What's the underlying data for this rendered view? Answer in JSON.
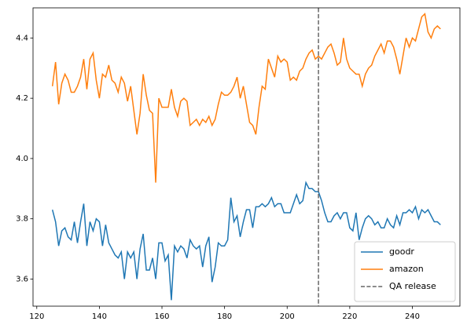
{
  "chart_data": {
    "type": "line",
    "x": [
      125,
      126,
      127,
      128,
      129,
      130,
      131,
      132,
      133,
      134,
      135,
      136,
      137,
      138,
      139,
      140,
      141,
      142,
      143,
      144,
      145,
      146,
      147,
      148,
      149,
      150,
      151,
      152,
      153,
      154,
      155,
      156,
      157,
      158,
      159,
      160,
      161,
      162,
      163,
      164,
      165,
      166,
      167,
      168,
      169,
      170,
      171,
      172,
      173,
      174,
      175,
      176,
      177,
      178,
      179,
      180,
      181,
      182,
      183,
      184,
      185,
      186,
      187,
      188,
      189,
      190,
      191,
      192,
      193,
      194,
      195,
      196,
      197,
      198,
      199,
      200,
      201,
      202,
      203,
      204,
      205,
      206,
      207,
      208,
      209,
      210,
      211,
      212,
      213,
      214,
      215,
      216,
      217,
      218,
      219,
      220,
      221,
      222,
      223,
      224,
      225,
      226,
      227,
      228,
      229,
      230,
      231,
      232,
      233,
      234,
      235,
      236,
      237,
      238,
      239,
      240,
      241,
      242,
      243,
      244,
      245,
      246,
      247,
      248,
      249
    ],
    "series": [
      {
        "name": "goodr",
        "color": "#1f77b4",
        "values": [
          3.83,
          3.79,
          3.71,
          3.76,
          3.77,
          3.74,
          3.73,
          3.79,
          3.72,
          3.79,
          3.85,
          3.71,
          3.79,
          3.76,
          3.8,
          3.79,
          3.71,
          3.78,
          3.72,
          3.7,
          3.68,
          3.67,
          3.69,
          3.6,
          3.69,
          3.67,
          3.69,
          3.6,
          3.7,
          3.75,
          3.63,
          3.63,
          3.67,
          3.6,
          3.72,
          3.72,
          3.66,
          3.68,
          3.53,
          3.71,
          3.69,
          3.71,
          3.7,
          3.67,
          3.73,
          3.71,
          3.7,
          3.71,
          3.64,
          3.71,
          3.74,
          3.59,
          3.64,
          3.72,
          3.71,
          3.71,
          3.73,
          3.87,
          3.79,
          3.81,
          3.74,
          3.79,
          3.83,
          3.83,
          3.77,
          3.84,
          3.84,
          3.85,
          3.84,
          3.85,
          3.87,
          3.84,
          3.85,
          3.85,
          3.82,
          3.82,
          3.82,
          3.85,
          3.88,
          3.85,
          3.86,
          3.92,
          3.9,
          3.9,
          3.89,
          3.89,
          3.86,
          3.82,
          3.79,
          3.79,
          3.81,
          3.82,
          3.8,
          3.82,
          3.82,
          3.77,
          3.76,
          3.82,
          3.73,
          3.77,
          3.8,
          3.81,
          3.8,
          3.78,
          3.79,
          3.77,
          3.77,
          3.8,
          3.78,
          3.77,
          3.81,
          3.78,
          3.82,
          3.82,
          3.83,
          3.82,
          3.84,
          3.8,
          3.83,
          3.82,
          3.83,
          3.81,
          3.79,
          3.79,
          3.78
        ]
      },
      {
        "name": "amazon",
        "color": "#ff7f0e",
        "values": [
          4.24,
          4.32,
          4.18,
          4.25,
          4.28,
          4.26,
          4.22,
          4.22,
          4.24,
          4.27,
          4.33,
          4.23,
          4.33,
          4.35,
          4.26,
          4.2,
          4.28,
          4.27,
          4.31,
          4.26,
          4.25,
          4.22,
          4.27,
          4.25,
          4.19,
          4.24,
          4.16,
          4.08,
          4.15,
          4.28,
          4.21,
          4.16,
          4.15,
          3.92,
          4.2,
          4.17,
          4.17,
          4.17,
          4.23,
          4.17,
          4.14,
          4.19,
          4.2,
          4.19,
          4.11,
          4.12,
          4.13,
          4.11,
          4.13,
          4.12,
          4.14,
          4.11,
          4.13,
          4.18,
          4.22,
          4.21,
          4.21,
          4.22,
          4.24,
          4.27,
          4.2,
          4.24,
          4.18,
          4.12,
          4.11,
          4.08,
          4.17,
          4.24,
          4.23,
          4.33,
          4.3,
          4.27,
          4.34,
          4.32,
          4.33,
          4.32,
          4.26,
          4.27,
          4.26,
          4.29,
          4.3,
          4.33,
          4.35,
          4.36,
          4.33,
          4.34,
          4.33,
          4.35,
          4.37,
          4.38,
          4.35,
          4.31,
          4.32,
          4.4,
          4.33,
          4.3,
          4.29,
          4.28,
          4.28,
          4.24,
          4.28,
          4.3,
          4.31,
          4.34,
          4.36,
          4.38,
          4.35,
          4.39,
          4.39,
          4.37,
          4.33,
          4.28,
          4.34,
          4.4,
          4.37,
          4.4,
          4.39,
          4.43,
          4.47,
          4.48,
          4.42,
          4.4,
          4.43,
          4.44,
          4.43
        ]
      }
    ],
    "reference_lines": [
      {
        "x": 210,
        "label": "QA release",
        "color": "#666666",
        "style": "dashed"
      }
    ],
    "xlim": [
      118.8,
      255.2
    ],
    "xticks": [
      120,
      140,
      160,
      180,
      200,
      220,
      240
    ],
    "ylim": [
      3.51,
      4.5
    ],
    "yticks": [
      3.6,
      3.8,
      {
        "value": 4,
        "label": "4.0"
      },
      4.2,
      4.4
    ],
    "grid": false,
    "legend": "lower right"
  }
}
